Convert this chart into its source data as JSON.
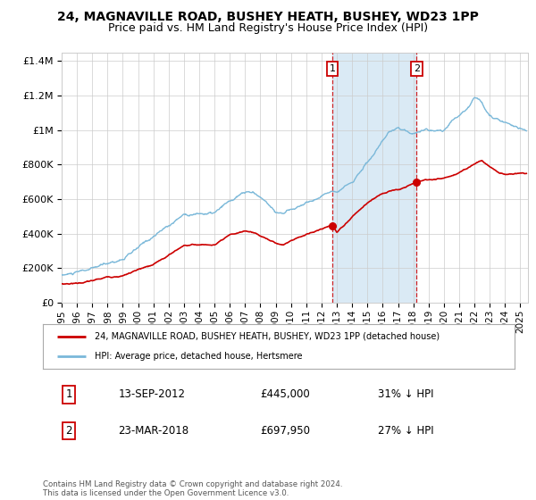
{
  "title_line1": "24, MAGNAVILLE ROAD, BUSHEY HEATH, BUSHEY, WD23 1PP",
  "title_line2": "Price paid vs. HM Land Registry's House Price Index (HPI)",
  "xlim_start": 1995.0,
  "xlim_end": 2025.5,
  "ylim_min": 0,
  "ylim_max": 1450000,
  "hpi_color": "#7ab8d9",
  "price_color": "#cc0000",
  "sale1_date": 2012.71,
  "sale1_price": 445000,
  "sale1_label": "1",
  "sale2_date": 2018.22,
  "sale2_price": 697950,
  "sale2_label": "2",
  "shade_color": "#daeaf5",
  "legend_line1": "24, MAGNAVILLE ROAD, BUSHEY HEATH, BUSHEY, WD23 1PP (detached house)",
  "legend_line2": "HPI: Average price, detached house, Hertsmere",
  "table_row1": [
    "1",
    "13-SEP-2012",
    "£445,000",
    "31% ↓ HPI"
  ],
  "table_row2": [
    "2",
    "23-MAR-2018",
    "£697,950",
    "27% ↓ HPI"
  ],
  "footer": "Contains HM Land Registry data © Crown copyright and database right 2024.\nThis data is licensed under the Open Government Licence v3.0.",
  "background_color": "#ffffff",
  "grid_color": "#cccccc",
  "title_fontsize": 10,
  "subtitle_fontsize": 9
}
